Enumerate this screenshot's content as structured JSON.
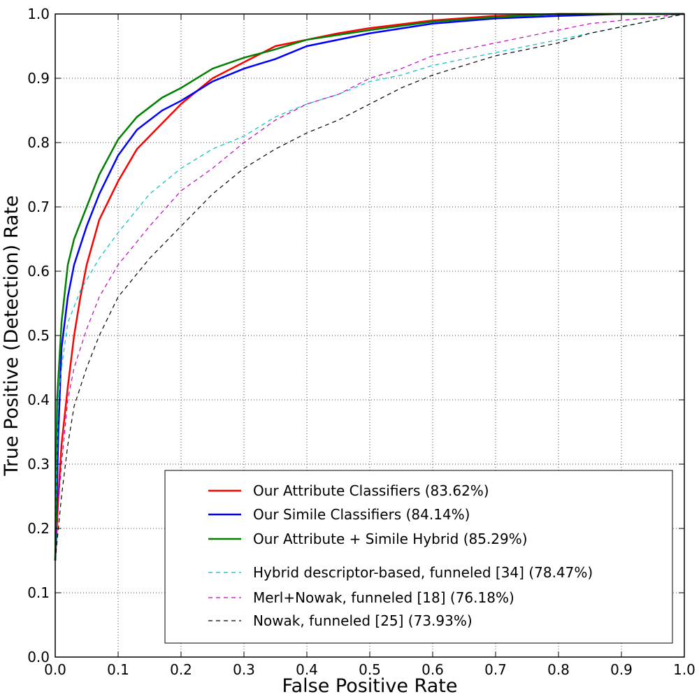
{
  "chart_data": {
    "type": "line",
    "title": "",
    "xlabel": "False Positive Rate",
    "ylabel": "True Positive (Detection) Rate",
    "xlim": [
      0,
      1
    ],
    "ylim": [
      0,
      1
    ],
    "xticks": [
      "0.0",
      "0.1",
      "0.2",
      "0.3",
      "0.4",
      "0.5",
      "0.6",
      "0.7",
      "0.8",
      "0.9",
      "1.0"
    ],
    "yticks": [
      "0.0",
      "0.1",
      "0.2",
      "0.3",
      "0.4",
      "0.5",
      "0.6",
      "0.7",
      "0.8",
      "0.9",
      "1.0"
    ],
    "grid": true,
    "legend_position": "bottom-right",
    "series": [
      {
        "name": "Our Attribute Classifiers (83.62%)",
        "color": "#ff0000",
        "dash": false,
        "x": [
          0,
          0.005,
          0.01,
          0.02,
          0.03,
          0.04,
          0.05,
          0.07,
          0.1,
          0.13,
          0.17,
          0.2,
          0.25,
          0.3,
          0.35,
          0.4,
          0.45,
          0.5,
          0.6,
          0.7,
          0.8,
          1
        ],
        "y": [
          0.15,
          0.25,
          0.33,
          0.42,
          0.5,
          0.56,
          0.61,
          0.68,
          0.74,
          0.79,
          0.83,
          0.86,
          0.9,
          0.925,
          0.95,
          0.96,
          0.97,
          0.978,
          0.99,
          0.997,
          1,
          1
        ]
      },
      {
        "name": "Our Simile Classifiers (84.14%)",
        "color": "#0000ff",
        "dash": false,
        "x": [
          0,
          0.005,
          0.01,
          0.02,
          0.03,
          0.05,
          0.07,
          0.1,
          0.13,
          0.17,
          0.2,
          0.25,
          0.3,
          0.35,
          0.4,
          0.5,
          0.6,
          0.7,
          0.8,
          0.9,
          1
        ],
        "y": [
          0.15,
          0.35,
          0.48,
          0.56,
          0.61,
          0.67,
          0.72,
          0.78,
          0.82,
          0.85,
          0.865,
          0.895,
          0.915,
          0.93,
          0.95,
          0.97,
          0.985,
          0.993,
          0.997,
          1,
          1
        ]
      },
      {
        "name": "Our Attribute + Simile Hybrid (85.29%)",
        "color": "#008000",
        "dash": false,
        "x": [
          0,
          0.003,
          0.01,
          0.02,
          0.03,
          0.05,
          0.07,
          0.1,
          0.13,
          0.17,
          0.2,
          0.25,
          0.3,
          0.35,
          0.4,
          0.5,
          0.6,
          0.7,
          0.8,
          1
        ],
        "y": [
          0.15,
          0.4,
          0.52,
          0.61,
          0.65,
          0.7,
          0.75,
          0.805,
          0.84,
          0.87,
          0.885,
          0.915,
          0.932,
          0.945,
          0.96,
          0.975,
          0.988,
          0.995,
          1,
          1
        ]
      },
      {
        "name": "Hybrid descriptor-based, funneled [34] (78.47%)",
        "color": "#00bfbf",
        "dash": true,
        "x": [
          0,
          0.005,
          0.01,
          0.02,
          0.04,
          0.07,
          0.1,
          0.15,
          0.2,
          0.25,
          0.3,
          0.35,
          0.4,
          0.45,
          0.5,
          0.55,
          0.6,
          0.65,
          0.7,
          0.75,
          0.8,
          0.85,
          0.9,
          0.95,
          1
        ],
        "y": [
          0.2,
          0.4,
          0.45,
          0.52,
          0.57,
          0.62,
          0.66,
          0.72,
          0.76,
          0.79,
          0.81,
          0.84,
          0.86,
          0.875,
          0.895,
          0.905,
          0.92,
          0.93,
          0.94,
          0.95,
          0.96,
          0.97,
          0.98,
          0.99,
          1
        ]
      },
      {
        "name": "Merl+Nowak, funneled [18] (76.18%)",
        "color": "#bf00bf",
        "dash": true,
        "x": [
          0,
          0.01,
          0.02,
          0.03,
          0.05,
          0.07,
          0.1,
          0.15,
          0.2,
          0.25,
          0.3,
          0.35,
          0.4,
          0.45,
          0.5,
          0.55,
          0.6,
          0.65,
          0.7,
          0.75,
          0.8,
          0.85,
          0.9,
          0.95,
          1
        ],
        "y": [
          0.18,
          0.3,
          0.4,
          0.45,
          0.51,
          0.56,
          0.61,
          0.67,
          0.725,
          0.76,
          0.8,
          0.835,
          0.86,
          0.875,
          0.9,
          0.915,
          0.935,
          0.945,
          0.955,
          0.965,
          0.975,
          0.985,
          0.99,
          0.995,
          1
        ]
      },
      {
        "name": "Nowak, funneled [25] (73.93%)",
        "color": "#000000",
        "dash": true,
        "x": [
          0,
          0.01,
          0.02,
          0.03,
          0.05,
          0.07,
          0.1,
          0.15,
          0.2,
          0.25,
          0.3,
          0.35,
          0.4,
          0.45,
          0.5,
          0.55,
          0.6,
          0.65,
          0.7,
          0.75,
          0.8,
          0.85,
          0.9,
          0.95,
          1
        ],
        "y": [
          0.15,
          0.25,
          0.33,
          0.39,
          0.45,
          0.5,
          0.56,
          0.62,
          0.67,
          0.72,
          0.76,
          0.79,
          0.815,
          0.835,
          0.86,
          0.885,
          0.905,
          0.92,
          0.935,
          0.945,
          0.955,
          0.97,
          0.98,
          0.99,
          1
        ]
      }
    ]
  }
}
